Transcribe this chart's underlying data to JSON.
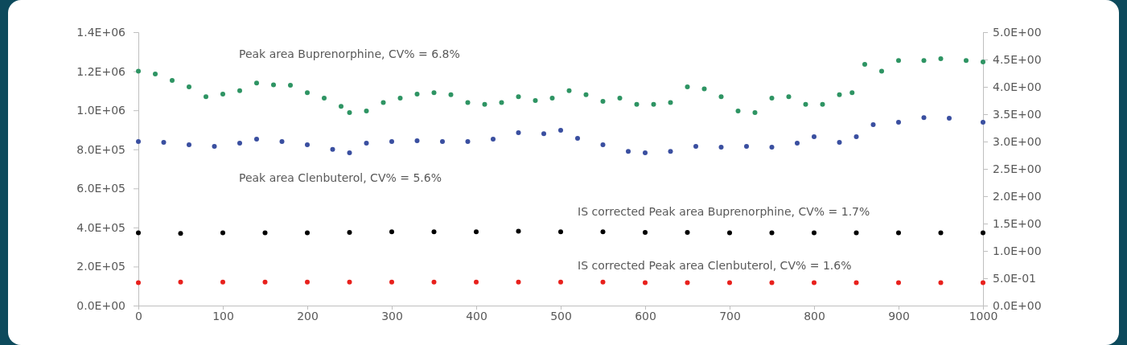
{
  "chart_data": {
    "type": "scatter",
    "marker": "circle",
    "grid": false,
    "legend": false,
    "xlim": [
      0,
      1000
    ],
    "xticks": [
      0,
      100,
      200,
      300,
      400,
      500,
      600,
      700,
      800,
      900,
      1000
    ],
    "ylim": [
      0,
      1400000
    ],
    "yticks": [
      {
        "value": 0,
        "label": "0.0E+00"
      },
      {
        "value": 200000,
        "label": "2.0E+05"
      },
      {
        "value": 400000,
        "label": "4.0E+05"
      },
      {
        "value": 600000,
        "label": "6.0E+05"
      },
      {
        "value": 800000,
        "label": "8.0E+05"
      },
      {
        "value": 1000000,
        "label": "1.0E+06"
      },
      {
        "value": 1200000,
        "label": "1.2E+06"
      },
      {
        "value": 1400000,
        "label": "1.4E+06"
      }
    ],
    "y2lim": [
      0,
      5
    ],
    "y2ticks": [
      {
        "value": 0,
        "label": "0.0E+00"
      },
      {
        "value": 0.5,
        "label": "5.0E-01"
      },
      {
        "value": 1,
        "label": "1.0E+00"
      },
      {
        "value": 1.5,
        "label": "1.5E+00"
      },
      {
        "value": 2,
        "label": "2.0E+00"
      },
      {
        "value": 2.5,
        "label": "2.5E+00"
      },
      {
        "value": 3,
        "label": "3.0E+00"
      },
      {
        "value": 3.5,
        "label": "3.5E+00"
      },
      {
        "value": 4,
        "label": "4.0E+00"
      },
      {
        "value": 4.5,
        "label": "4.5E+00"
      },
      {
        "value": 5,
        "label": "5.0E+00"
      }
    ],
    "series": [
      {
        "name": "Peak area Buprenorphine, CV% = 6.8%",
        "color": "#2e9463",
        "x": [
          0,
          20,
          40,
          60,
          80,
          100,
          120,
          140,
          160,
          180,
          200,
          220,
          240,
          250,
          270,
          290,
          310,
          330,
          350,
          370,
          390,
          410,
          430,
          450,
          470,
          490,
          510,
          530,
          550,
          570,
          590,
          610,
          630,
          650,
          670,
          690,
          710,
          730,
          750,
          770,
          790,
          810,
          830,
          845,
          860,
          880,
          900,
          930,
          950,
          980,
          1000
        ],
        "values": [
          1200000,
          1186000,
          1153000,
          1120000,
          1070000,
          1083000,
          1100000,
          1140000,
          1130000,
          1128000,
          1090000,
          1062000,
          1020000,
          988000,
          996000,
          1040000,
          1062000,
          1083000,
          1090000,
          1080000,
          1040000,
          1030000,
          1040000,
          1070000,
          1050000,
          1062000,
          1100000,
          1080000,
          1046000,
          1062000,
          1030000,
          1030000,
          1040000,
          1120000,
          1110000,
          1070000,
          996000,
          988000,
          1062000,
          1070000,
          1030000,
          1030000,
          1080000,
          1090000,
          1235000,
          1200000,
          1255000,
          1255000,
          1264000,
          1255000,
          1248000
        ]
      },
      {
        "name": "Peak area Clenbuterol, CV% = 5.6%",
        "color": "#3a4fa0",
        "x": [
          0,
          30,
          60,
          90,
          120,
          140,
          170,
          200,
          230,
          250,
          270,
          300,
          330,
          360,
          390,
          420,
          450,
          480,
          500,
          520,
          550,
          580,
          600,
          630,
          660,
          690,
          720,
          750,
          780,
          800,
          830,
          850,
          870,
          900,
          930,
          960,
          1000
        ],
        "values": [
          840000,
          836000,
          824000,
          815000,
          832000,
          852000,
          840000,
          824000,
          800000,
          782000,
          832000,
          840000,
          844000,
          840000,
          840000,
          852000,
          885000,
          880000,
          898000,
          856000,
          824000,
          790000,
          782000,
          790000,
          815000,
          811000,
          815000,
          811000,
          832000,
          865000,
          836000,
          865000,
          926000,
          939000,
          963000,
          959000,
          939000
        ]
      },
      {
        "name": "IS corrected Peak area Buprenorphine, CV% = 1.7%",
        "color": "#000000",
        "axis": "y2",
        "x": [
          0,
          50,
          100,
          150,
          200,
          250,
          300,
          350,
          400,
          450,
          500,
          550,
          600,
          650,
          700,
          750,
          800,
          850,
          900,
          950,
          1000
        ],
        "values": [
          1.33,
          1.32,
          1.33,
          1.33,
          1.33,
          1.34,
          1.35,
          1.35,
          1.35,
          1.36,
          1.35,
          1.35,
          1.34,
          1.34,
          1.33,
          1.33,
          1.33,
          1.33,
          1.33,
          1.33,
          1.33
        ]
      },
      {
        "name": "IS corrected Peak area Clenbuterol, CV% = 1.6%",
        "color": "#e8201c",
        "axis": "y2",
        "x": [
          0,
          50,
          100,
          150,
          200,
          250,
          300,
          350,
          400,
          450,
          500,
          550,
          600,
          650,
          700,
          750,
          800,
          850,
          900,
          950,
          1000
        ],
        "values": [
          0.42,
          0.43,
          0.43,
          0.43,
          0.43,
          0.43,
          0.43,
          0.43,
          0.43,
          0.43,
          0.43,
          0.43,
          0.42,
          0.42,
          0.42,
          0.42,
          0.42,
          0.42,
          0.42,
          0.42,
          0.42
        ]
      }
    ]
  }
}
